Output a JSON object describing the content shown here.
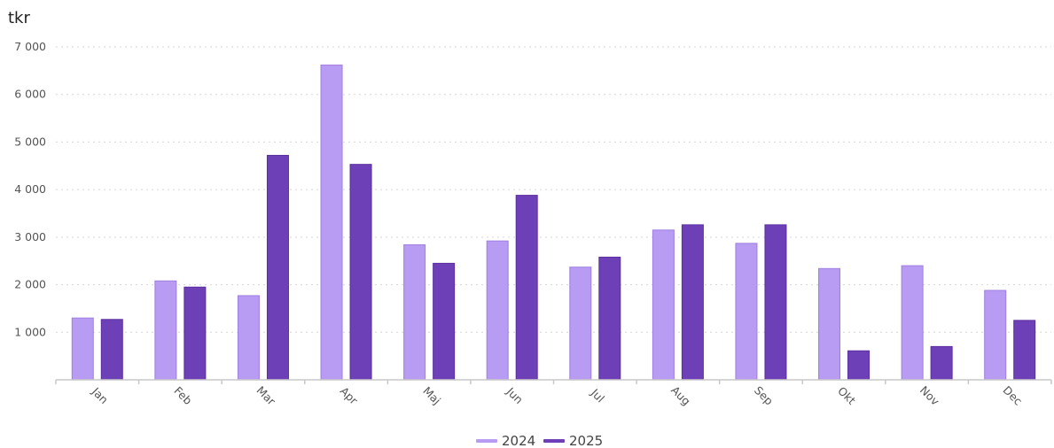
{
  "chart_data": {
    "type": "bar",
    "unit_label": "tkr",
    "categories": [
      "Jan",
      "Feb",
      "Mar",
      "Apr",
      "Maj",
      "Jun",
      "Jul",
      "Aug",
      "Sep",
      "Okt",
      "Nov",
      "Dec"
    ],
    "series": [
      {
        "name": "2024",
        "color": "#b89bf2",
        "values": [
          1300,
          2080,
          1770,
          6620,
          2840,
          2920,
          2370,
          3150,
          2870,
          2340,
          2400,
          1880
        ]
      },
      {
        "name": "2025",
        "color": "#6e40b8",
        "values": [
          1270,
          1950,
          4720,
          4530,
          2450,
          3880,
          2580,
          3260,
          3260,
          610,
          700,
          1250
        ]
      }
    ],
    "y_ticks": [
      {
        "value": 1000,
        "label": "1 000"
      },
      {
        "value": 2000,
        "label": "2 000"
      },
      {
        "value": 3000,
        "label": "3 000"
      },
      {
        "value": 4000,
        "label": "4 000"
      },
      {
        "value": 5000,
        "label": "5 000"
      },
      {
        "value": 6000,
        "label": "6 000"
      },
      {
        "value": 7000,
        "label": "7 000"
      }
    ],
    "ylim": [
      0,
      7000
    ],
    "grid": true,
    "legend_position": "bottom-center"
  }
}
